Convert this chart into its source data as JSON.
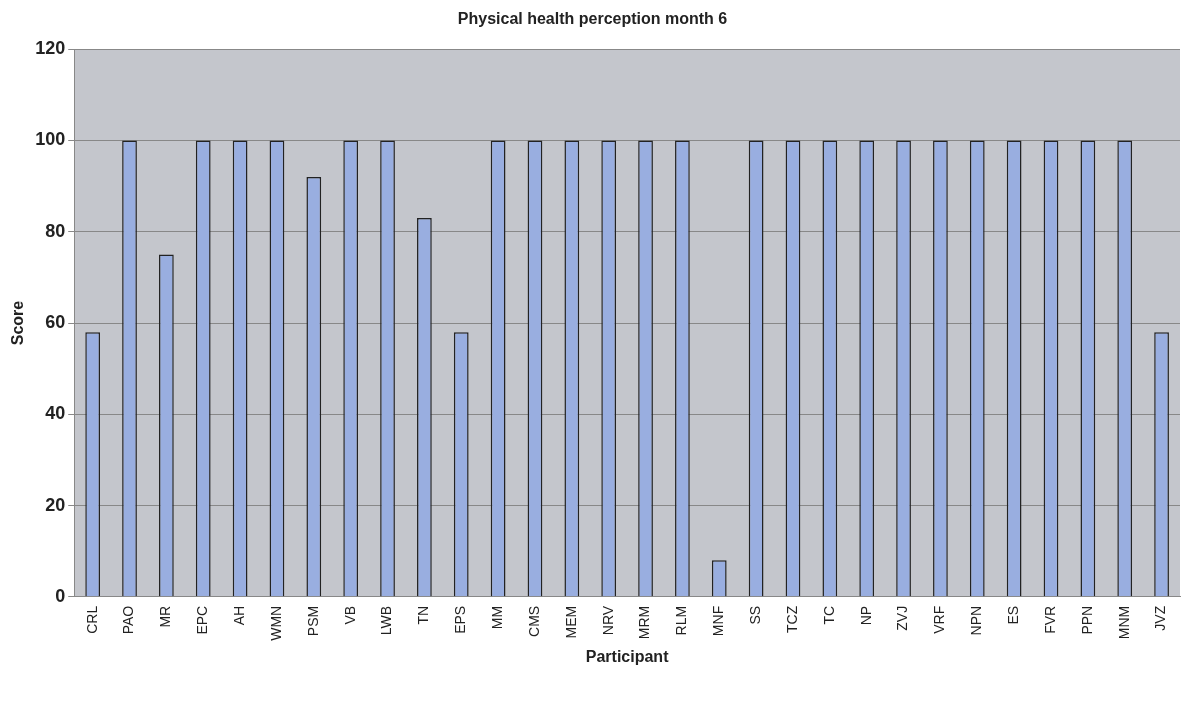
{
  "chart_data": {
    "type": "bar",
    "title": "Physical health perception month 6",
    "xlabel": "Participant",
    "ylabel": "Score",
    "categories": [
      "CRL",
      "PAO",
      "MR",
      "EPC",
      "AH",
      "WMN",
      "PSM",
      "VB",
      "LWB",
      "TN",
      "EPS",
      "MM",
      "CMS",
      "MEM",
      "NRV",
      "MRM",
      "RLM",
      "MNF",
      "SS",
      "TCZ",
      "TC",
      "NP",
      "ZVJ",
      "VRF",
      "NPN",
      "ES",
      "FVR",
      "PPN",
      "MNM",
      "JVZ"
    ],
    "values": [
      58,
      100,
      75,
      100,
      100,
      100,
      92,
      100,
      100,
      83,
      58,
      100,
      100,
      100,
      100,
      100,
      100,
      8,
      100,
      100,
      100,
      100,
      100,
      100,
      100,
      100,
      100,
      100,
      100,
      58
    ],
    "color": "#99aee0",
    "ylim": [
      0,
      120
    ],
    "yticks": [
      0,
      20,
      40,
      60,
      80,
      100,
      120
    ],
    "grid": "y"
  }
}
